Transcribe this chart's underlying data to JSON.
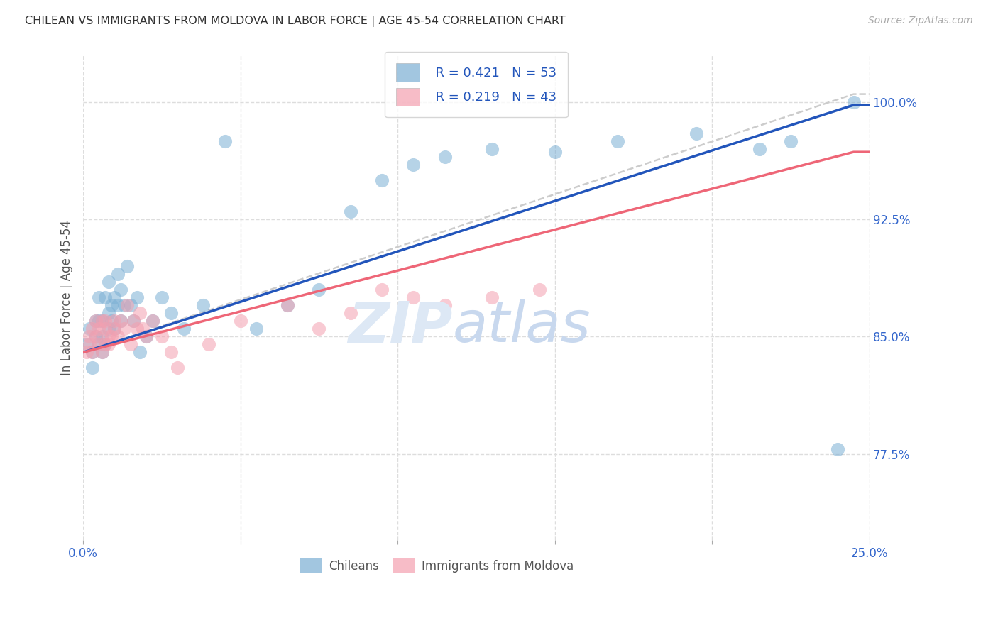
{
  "title": "CHILEAN VS IMMIGRANTS FROM MOLDOVA IN LABOR FORCE | AGE 45-54 CORRELATION CHART",
  "source": "Source: ZipAtlas.com",
  "ylabel": "In Labor Force | Age 45-54",
  "xlim": [
    0.0,
    0.25
  ],
  "ylim": [
    0.72,
    1.03
  ],
  "xticks": [
    0.0,
    0.05,
    0.1,
    0.15,
    0.2,
    0.25
  ],
  "yticks": [
    0.775,
    0.85,
    0.925,
    1.0
  ],
  "yticklabels": [
    "77.5%",
    "85.0%",
    "92.5%",
    "100.0%"
  ],
  "legend_labels": [
    "Chileans",
    "Immigrants from Moldova"
  ],
  "r_chilean": "0.421",
  "n_chilean": "53",
  "r_moldova": "0.219",
  "n_moldova": "43",
  "blue_color": "#7BAFD4",
  "pink_color": "#F4A0B0",
  "blue_line_color": "#2255BB",
  "pink_line_color": "#EE6677",
  "gray_line_color": "#CCCCCC",
  "stat_color": "#2255BB",
  "blue_scatter_x": [
    0.001,
    0.002,
    0.003,
    0.003,
    0.004,
    0.004,
    0.005,
    0.005,
    0.005,
    0.006,
    0.006,
    0.006,
    0.007,
    0.007,
    0.008,
    0.008,
    0.008,
    0.009,
    0.009,
    0.01,
    0.01,
    0.011,
    0.011,
    0.012,
    0.012,
    0.013,
    0.014,
    0.015,
    0.016,
    0.017,
    0.018,
    0.02,
    0.022,
    0.025,
    0.028,
    0.032,
    0.038,
    0.045,
    0.055,
    0.065,
    0.075,
    0.085,
    0.095,
    0.105,
    0.115,
    0.13,
    0.15,
    0.17,
    0.195,
    0.215,
    0.225,
    0.24,
    0.245
  ],
  "blue_scatter_y": [
    0.845,
    0.855,
    0.84,
    0.83,
    0.85,
    0.86,
    0.845,
    0.86,
    0.875,
    0.85,
    0.84,
    0.86,
    0.845,
    0.875,
    0.855,
    0.865,
    0.885,
    0.87,
    0.86,
    0.855,
    0.875,
    0.87,
    0.89,
    0.86,
    0.88,
    0.87,
    0.895,
    0.87,
    0.86,
    0.875,
    0.84,
    0.85,
    0.86,
    0.875,
    0.865,
    0.855,
    0.87,
    0.975,
    0.855,
    0.87,
    0.88,
    0.93,
    0.95,
    0.96,
    0.965,
    0.97,
    0.968,
    0.975,
    0.98,
    0.97,
    0.975,
    0.778,
    1.0
  ],
  "pink_scatter_x": [
    0.001,
    0.002,
    0.002,
    0.003,
    0.003,
    0.004,
    0.004,
    0.005,
    0.005,
    0.006,
    0.006,
    0.007,
    0.007,
    0.007,
    0.008,
    0.008,
    0.009,
    0.01,
    0.01,
    0.011,
    0.012,
    0.013,
    0.014,
    0.015,
    0.016,
    0.017,
    0.018,
    0.019,
    0.02,
    0.022,
    0.025,
    0.028,
    0.03,
    0.04,
    0.05,
    0.065,
    0.075,
    0.085,
    0.095,
    0.105,
    0.115,
    0.13,
    0.145
  ],
  "pink_scatter_y": [
    0.84,
    0.845,
    0.85,
    0.84,
    0.855,
    0.85,
    0.86,
    0.845,
    0.855,
    0.84,
    0.86,
    0.845,
    0.855,
    0.86,
    0.85,
    0.845,
    0.85,
    0.855,
    0.86,
    0.85,
    0.86,
    0.855,
    0.87,
    0.845,
    0.86,
    0.855,
    0.865,
    0.855,
    0.85,
    0.86,
    0.85,
    0.84,
    0.83,
    0.845,
    0.86,
    0.87,
    0.855,
    0.865,
    0.88,
    0.875,
    0.87,
    0.875,
    0.88
  ],
  "blue_line_x0": 0.0,
  "blue_line_y0": 0.84,
  "blue_line_x1": 0.245,
  "blue_line_y1": 0.998,
  "pink_line_x0": 0.0,
  "pink_line_y0": 0.84,
  "pink_line_x1": 0.245,
  "pink_line_y1": 0.968,
  "gray_line_x0": 0.0,
  "gray_line_y0": 0.84,
  "gray_line_x1": 0.245,
  "gray_line_y1": 1.005
}
